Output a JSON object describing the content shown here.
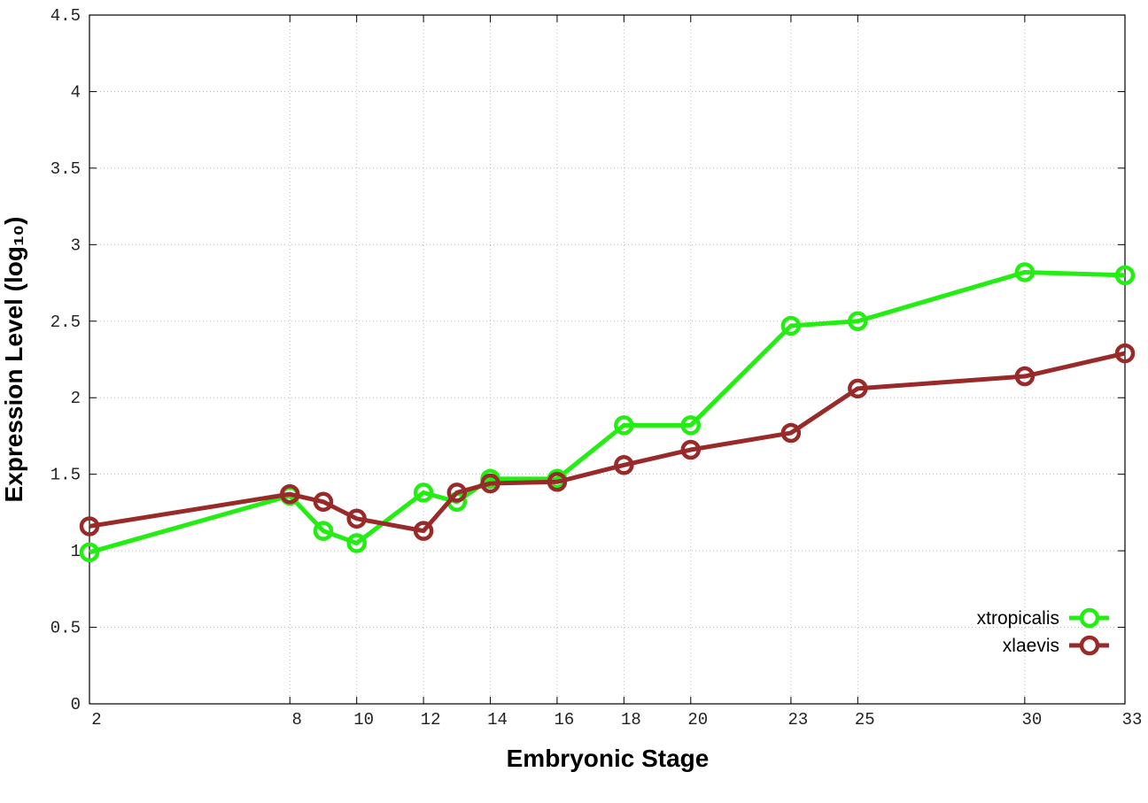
{
  "chart_data": {
    "type": "line",
    "xlabel": "Embryonic Stage",
    "ylabel": "Expression Level (log₁₀)",
    "x": [
      2,
      8,
      9,
      10,
      12,
      13,
      14,
      16,
      18,
      20,
      23,
      25,
      30,
      33
    ],
    "series": [
      {
        "name": "xtropicalis",
        "color": "#22ee11",
        "values": [
          0.99,
          1.36,
          1.13,
          1.05,
          1.38,
          1.32,
          1.47,
          1.47,
          1.82,
          1.82,
          2.47,
          2.5,
          2.82,
          2.8
        ]
      },
      {
        "name": "xlaevis",
        "color": "#992a2a",
        "values": [
          1.16,
          1.37,
          1.32,
          1.21,
          1.13,
          1.38,
          1.44,
          1.45,
          1.56,
          1.66,
          1.77,
          2.06,
          2.14,
          2.29
        ]
      }
    ],
    "xlim": [
      2,
      33
    ],
    "xticks": [
      2,
      8,
      10,
      12,
      14,
      16,
      18,
      20,
      23,
      25,
      30,
      33
    ],
    "ylim": [
      0,
      4.5
    ],
    "yticks": [
      0,
      0.5,
      1,
      1.5,
      2,
      2.5,
      3,
      3.5,
      4,
      4.5
    ],
    "grid": true,
    "legend": "bottom-right"
  }
}
